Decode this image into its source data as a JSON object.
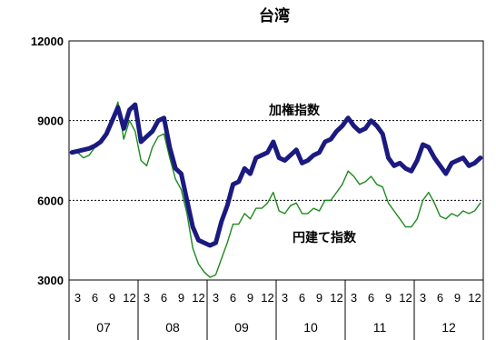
{
  "chart_data": {
    "type": "line",
    "title": "台湾",
    "ylim": [
      3000,
      12000
    ],
    "yticks": [
      "3000",
      "6000",
      "9000",
      "12000"
    ],
    "xticks": [
      "3",
      "6",
      "9",
      "12",
      "3",
      "6",
      "9",
      "12",
      "3",
      "6",
      "9",
      "12",
      "3",
      "6",
      "9",
      "12",
      "3",
      "6",
      "9",
      "12",
      "3",
      "6",
      "9",
      "12"
    ],
    "years": [
      "07",
      "08",
      "09",
      "10",
      "11",
      "12"
    ],
    "annotations": {
      "series1": "加権指数",
      "series2": "円建て指数"
    },
    "colors": {
      "series1": "#1a1a80",
      "series2": "#1c8a1c"
    },
    "x": [
      "2007-01",
      "2007-02",
      "2007-03",
      "2007-04",
      "2007-05",
      "2007-06",
      "2007-07",
      "2007-08",
      "2007-09",
      "2007-10",
      "2007-11",
      "2007-12",
      "2008-01",
      "2008-02",
      "2008-03",
      "2008-04",
      "2008-05",
      "2008-06",
      "2008-07",
      "2008-08",
      "2008-09",
      "2008-10",
      "2008-11",
      "2008-12",
      "2009-01",
      "2009-02",
      "2009-03",
      "2009-04",
      "2009-05",
      "2009-06",
      "2009-07",
      "2009-08",
      "2009-09",
      "2009-10",
      "2009-11",
      "2009-12",
      "2010-01",
      "2010-02",
      "2010-03",
      "2010-04",
      "2010-05",
      "2010-06",
      "2010-07",
      "2010-08",
      "2010-09",
      "2010-10",
      "2010-11",
      "2010-12",
      "2011-01",
      "2011-02",
      "2011-03",
      "2011-04",
      "2011-05",
      "2011-06",
      "2011-07",
      "2011-08",
      "2011-09",
      "2011-10",
      "2011-11",
      "2011-12",
      "2012-01",
      "2012-02",
      "2012-03",
      "2012-04",
      "2012-05",
      "2012-06",
      "2012-07",
      "2012-08",
      "2012-09",
      "2012-10",
      "2012-11",
      "2012-12"
    ],
    "series": [
      {
        "name": "加権指数",
        "values": [
          7800,
          7850,
          7900,
          7950,
          8050,
          8200,
          8500,
          9000,
          9500,
          8700,
          9400,
          9600,
          8200,
          8400,
          8600,
          9000,
          9100,
          8000,
          7200,
          7000,
          6000,
          5000,
          4500,
          4400,
          4300,
          4400,
          5200,
          5800,
          6600,
          6700,
          7200,
          7000,
          7600,
          7700,
          7800,
          8200,
          7600,
          7500,
          7700,
          7900,
          7400,
          7500,
          7700,
          7800,
          8200,
          8300,
          8600,
          8800,
          9100,
          8800,
          8600,
          8700,
          9000,
          8800,
          8500,
          7600,
          7300,
          7400,
          7200,
          7100,
          7500,
          8100,
          8000,
          7600,
          7300,
          7000,
          7400,
          7500,
          7600,
          7300,
          7400,
          7600
        ]
      },
      {
        "name": "円建て指数",
        "values": [
          7800,
          7800,
          7600,
          7700,
          8000,
          8200,
          8500,
          9000,
          9700,
          8300,
          9000,
          8600,
          7500,
          7300,
          8000,
          8400,
          8500,
          7600,
          6800,
          6400,
          5500,
          4200,
          3600,
          3300,
          3100,
          3200,
          3800,
          4400,
          5100,
          5100,
          5500,
          5300,
          5700,
          5700,
          5900,
          6300,
          5600,
          5500,
          5800,
          5900,
          5500,
          5500,
          5700,
          5600,
          6000,
          6000,
          6300,
          6600,
          7100,
          6900,
          6600,
          6700,
          6900,
          6600,
          6500,
          5900,
          5600,
          5300,
          5000,
          5000,
          5300,
          6000,
          6300,
          5900,
          5400,
          5300,
          5500,
          5400,
          5600,
          5500,
          5600,
          5900
        ]
      }
    ]
  }
}
